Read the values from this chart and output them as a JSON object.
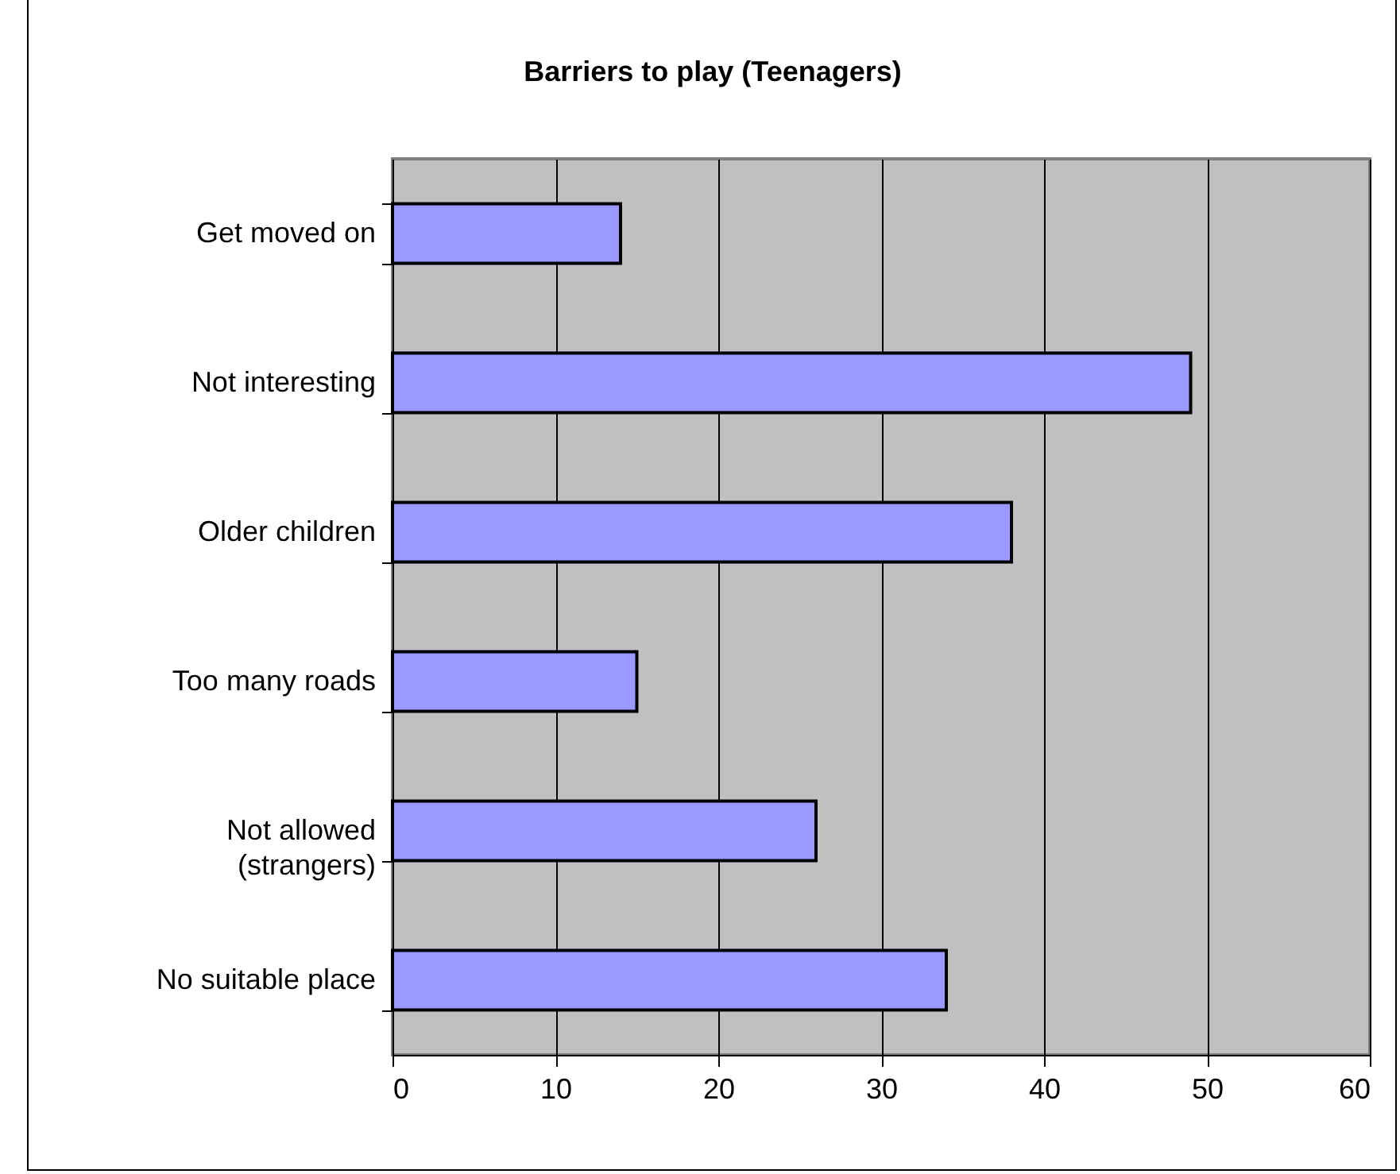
{
  "chart_data": {
    "type": "bar",
    "orientation": "horizontal",
    "title": "Barriers to play (Teenagers)",
    "categories": [
      "Get moved on",
      "Not interesting",
      "Older children",
      "Too many roads",
      "Not allowed\n(strangers)",
      "No suitable place"
    ],
    "values": [
      14,
      49,
      38,
      15,
      26,
      34
    ],
    "color": "#9999ff",
    "xlim": [
      0,
      60
    ],
    "xticks": [
      0,
      10,
      20,
      30,
      40,
      50,
      60
    ],
    "grid": "x"
  }
}
